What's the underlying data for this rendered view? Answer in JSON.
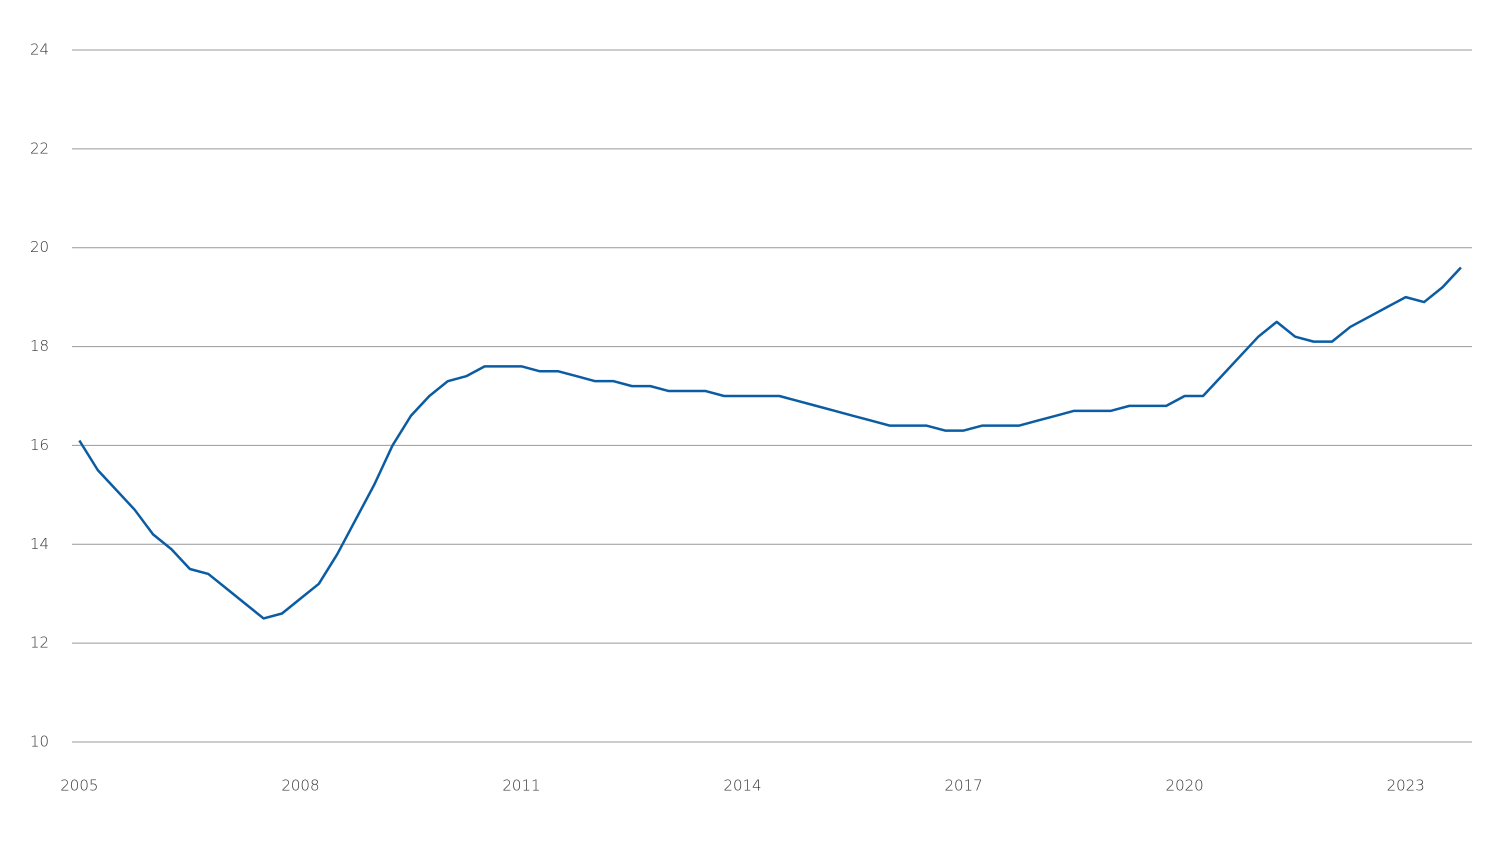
{
  "chart_data": {
    "type": "line",
    "x": [
      2005,
      2005.25,
      2005.5,
      2005.75,
      2006,
      2006.25,
      2006.5,
      2006.75,
      2007,
      2007.25,
      2007.5,
      2007.75,
      2008,
      2008.25,
      2008.5,
      2008.75,
      2009,
      2009.25,
      2009.5,
      2009.75,
      2010,
      2010.25,
      2010.5,
      2010.75,
      2011,
      2011.25,
      2011.5,
      2011.75,
      2012,
      2012.25,
      2012.5,
      2012.75,
      2013,
      2013.25,
      2013.5,
      2013.75,
      2014,
      2014.25,
      2014.5,
      2014.75,
      2015,
      2015.25,
      2015.5,
      2015.75,
      2016,
      2016.25,
      2016.5,
      2016.75,
      2017,
      2017.25,
      2017.5,
      2017.75,
      2018,
      2018.25,
      2018.5,
      2018.75,
      2019,
      2019.25,
      2019.5,
      2019.75,
      2020,
      2020.25,
      2020.5,
      2020.75,
      2021,
      2021.25,
      2021.5,
      2021.75,
      2022,
      2022.25,
      2022.5,
      2022.75,
      2023,
      2023.25,
      2023.5,
      2023.75
    ],
    "series": [
      {
        "color": "#0b5ca3",
        "values": [
          16.1,
          15.5,
          15.1,
          14.7,
          14.2,
          13.9,
          13.5,
          13.4,
          13.1,
          12.8,
          12.5,
          12.6,
          12.9,
          13.2,
          13.8,
          14.5,
          15.2,
          16.0,
          16.6,
          17.0,
          17.3,
          17.4,
          17.6,
          17.6,
          17.6,
          17.5,
          17.5,
          17.4,
          17.3,
          17.3,
          17.2,
          17.2,
          17.1,
          17.1,
          17.1,
          17.0,
          17.0,
          17.0,
          17.0,
          16.9,
          16.8,
          16.7,
          16.6,
          16.5,
          16.4,
          16.4,
          16.4,
          16.3,
          16.3,
          16.4,
          16.4,
          16.4,
          16.5,
          16.6,
          16.7,
          16.7,
          16.7,
          16.8,
          16.8,
          16.8,
          17.0,
          17.0,
          17.4,
          17.8,
          18.2,
          18.5,
          18.2,
          18.1,
          18.1,
          18.4,
          18.6,
          18.8,
          19.0,
          18.9,
          19.2,
          19.6
        ]
      }
    ],
    "xlim": [
      2004.9,
      2023.9
    ],
    "xticks": [
      2005,
      2008,
      2011,
      2014,
      2017,
      2020,
      2023
    ],
    "ylim": [
      10,
      24
    ],
    "yticks": [
      10,
      12,
      14,
      16,
      18,
      20,
      22,
      24
    ],
    "grid": true
  }
}
